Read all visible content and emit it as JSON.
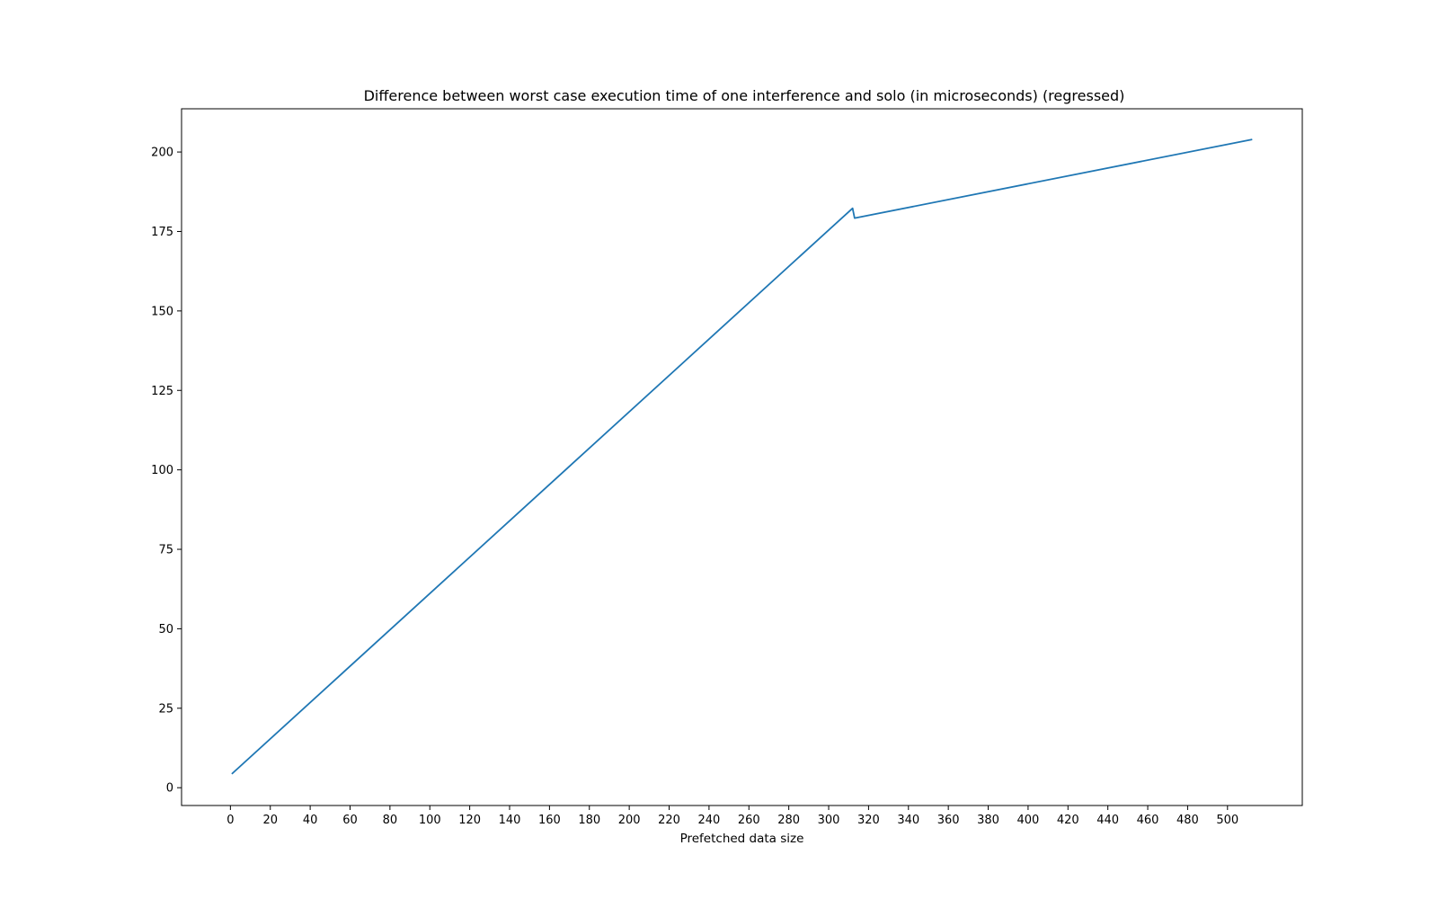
{
  "chart_data": {
    "type": "line",
    "title": "Difference between worst case execution time of one interference and solo (in microseconds) (regressed)",
    "xlabel": "Prefetched data size",
    "ylabel": "",
    "xlim": [
      -24.5,
      537.5
    ],
    "ylim": [
      -5.6,
      213.6
    ],
    "xticks": [
      0,
      20,
      40,
      60,
      80,
      100,
      120,
      140,
      160,
      180,
      200,
      220,
      240,
      260,
      280,
      300,
      320,
      340,
      360,
      380,
      400,
      420,
      440,
      460,
      480,
      500
    ],
    "xtick_labels": [
      "0",
      "20",
      "40",
      "60",
      "80",
      "100",
      "120",
      "140",
      "160",
      "180",
      "200",
      "220",
      "240",
      "260",
      "280",
      "300",
      "320",
      "340",
      "360",
      "380",
      "400",
      "420",
      "440",
      "460",
      "480",
      "500"
    ],
    "yticks": [
      0,
      25,
      50,
      75,
      100,
      125,
      150,
      175,
      200
    ],
    "ytick_labels": [
      "0",
      "25",
      "50",
      "75",
      "100",
      "125",
      "150",
      "175",
      "200"
    ],
    "grid": false,
    "series": [
      {
        "color": "#1f77b4",
        "x": [
          1,
          312,
          313,
          512
        ],
        "y": [
          4.5,
          182.3,
          179.2,
          203.9
        ]
      }
    ]
  }
}
